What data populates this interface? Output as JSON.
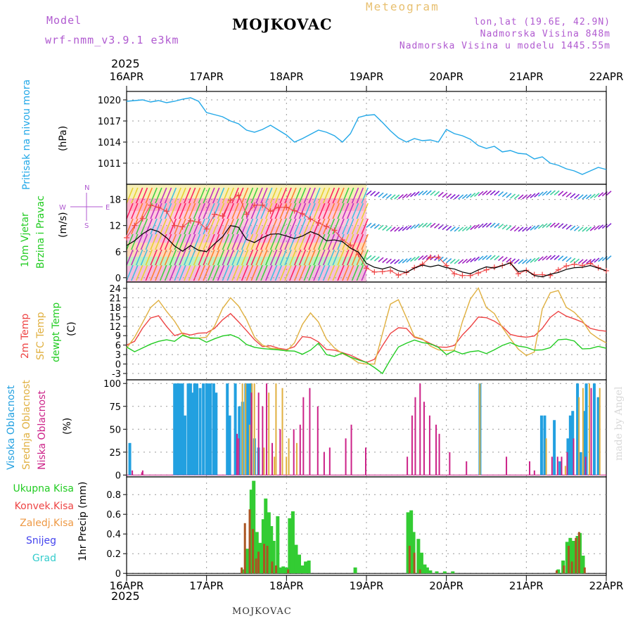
{
  "header": {
    "model_label": "Model",
    "model_name": "wrf-nmm_v3.9.1  e3km",
    "station_title": "MOJKOVAC",
    "meteogram_label": "Meteogram",
    "lonlat": "lon,lat (19.6E, 42.9N)",
    "altitude": "Nadmorska Visina 848m",
    "model_altitude": "Nadmorska Visina u modelu 1445.55m",
    "year_top": "2025",
    "year_bottom": "2025",
    "bottom_title": "MOJKOVAC",
    "credit": "made by Angel"
  },
  "time_axis": {
    "labels": [
      "16APR",
      "17APR",
      "18APR",
      "19APR",
      "20APR",
      "21APR",
      "22APR"
    ],
    "start_day": 0,
    "end_day": 6
  },
  "colors": {
    "pressure": "#22a8e8",
    "wind_speed": "#000000",
    "temp_2m": "#ee4444",
    "sfc_temp": "#e0b040",
    "dewpoint": "#22cc22",
    "cloud_high": "#22a0e0",
    "cloud_mid": "#e0b040",
    "cloud_low": "#cc2288",
    "precip_total": "#33cc33",
    "precip_conv": "#aa5522",
    "precip_ice": "#ee9944",
    "snow": "#4444ee",
    "grad": "#33cccc"
  },
  "chart_data": [
    {
      "name": "pressure",
      "type": "line",
      "ylabel": "Pritisak na nivou mora",
      "unit": "(hPa)",
      "ylim": [
        1008.0,
        1021.2
      ],
      "yticks": [
        1011,
        1014,
        1017,
        1020
      ],
      "x": [
        0,
        0.1,
        0.2,
        0.3,
        0.4,
        0.5,
        0.6,
        0.7,
        0.8,
        0.9,
        1.0,
        1.1,
        1.2,
        1.3,
        1.4,
        1.5,
        1.6,
        1.7,
        1.8,
        1.9,
        2.0,
        2.1,
        2.2,
        2.3,
        2.4,
        2.5,
        2.6,
        2.7,
        2.8,
        2.9,
        3.0,
        3.1,
        3.2,
        3.3,
        3.4,
        3.5,
        3.6,
        3.7,
        3.8,
        3.9,
        4.0,
        4.1,
        4.2,
        4.3,
        4.4,
        4.5,
        4.6,
        4.7,
        4.8,
        4.9,
        5.0,
        5.1,
        5.2,
        5.3,
        5.4,
        5.5,
        5.6,
        5.7,
        5.8,
        5.9,
        6.0
      ],
      "y": [
        1019.8,
        1019.9,
        1020.0,
        1019.7,
        1019.9,
        1019.6,
        1019.8,
        1020.1,
        1020.3,
        1019.8,
        1018.2,
        1017.9,
        1017.6,
        1017.0,
        1016.6,
        1015.7,
        1015.4,
        1015.8,
        1016.4,
        1015.7,
        1015.0,
        1014.0,
        1014.5,
        1015.1,
        1015.7,
        1015.4,
        1014.9,
        1014.0,
        1015.2,
        1017.5,
        1017.8,
        1017.9,
        1016.8,
        1015.6,
        1014.6,
        1014.0,
        1014.5,
        1014.2,
        1014.3,
        1014.0,
        1015.8,
        1015.2,
        1014.9,
        1014.4,
        1013.5,
        1013.1,
        1013.4,
        1012.6,
        1012.8,
        1012.4,
        1012.3,
        1011.6,
        1011.9,
        1011.0,
        1010.7,
        1010.2,
        1009.9,
        1009.4,
        1009.9,
        1010.4,
        1010.1
      ],
      "data_labels": {}
    },
    {
      "name": "wind",
      "type": "line",
      "ylabel": "10m Vjetar",
      "ylabel2": "Brzina i Pravac",
      "unit": "(m/s)",
      "compass": {
        "n": "N",
        "w": "W",
        "e": "E",
        "s": "S"
      },
      "ylim": [
        -1,
        21.5
      ],
      "yticks": [
        0,
        6,
        12,
        18
      ],
      "x": [
        0,
        0.1,
        0.2,
        0.3,
        0.4,
        0.5,
        0.6,
        0.7,
        0.8,
        0.9,
        1.0,
        1.1,
        1.2,
        1.3,
        1.4,
        1.5,
        1.6,
        1.7,
        1.8,
        1.9,
        2.0,
        2.1,
        2.2,
        2.3,
        2.4,
        2.5,
        2.6,
        2.7,
        2.8,
        2.9,
        3.0,
        3.1,
        3.2,
        3.3,
        3.4,
        3.5,
        3.6,
        3.7,
        3.8,
        3.9,
        4.0,
        4.1,
        4.2,
        4.3,
        4.4,
        4.5,
        4.6,
        4.7,
        4.8,
        4.9,
        5.0,
        5.1,
        5.2,
        5.3,
        5.4,
        5.5,
        5.6,
        5.7,
        5.8,
        5.9,
        6.0
      ],
      "y": [
        7.4,
        8.5,
        10.1,
        11.2,
        10.6,
        9.2,
        7.3,
        6.1,
        7.4,
        6.3,
        6.0,
        7.8,
        9.4,
        12.0,
        11.6,
        8.8,
        8.1,
        9.2,
        10.0,
        10.1,
        9.6,
        9.0,
        9.6,
        10.6,
        9.9,
        8.5,
        8.7,
        8.3,
        6.8,
        5.9,
        3.3,
        2.4,
        2.0,
        2.5,
        1.6,
        1.2,
        2.2,
        2.9,
        2.5,
        2.9,
        2.3,
        2.0,
        1.3,
        0.9,
        1.8,
        2.5,
        2.2,
        2.8,
        3.4,
        1.4,
        1.7,
        0.5,
        0.2,
        0.8,
        1.2,
        1.9,
        2.3,
        2.4,
        2.8,
        2.2,
        1.6
      ],
      "gust": [
        9.2,
        12.0,
        13.6,
        16.7,
        16.2,
        15.3,
        12.0,
        11.7,
        13.1,
        12.8,
        11.2,
        14.6,
        14.2,
        17.8,
        19.0,
        14.6,
        16.7,
        16.7,
        15.3,
        16.2,
        16.2,
        15.4,
        14.7,
        13.5,
        12.6,
        11.8,
        10.9,
        8.7,
        7.5,
        5.3,
        2.2,
        1.3,
        1.4,
        1.6,
        0.6,
        1.2,
        2.3,
        3.1,
        4.7,
        4.7,
        2.8,
        0.9,
        0.5,
        0.5,
        1.1,
        1.8,
        2.4,
        2.8,
        3.4,
        0.9,
        1.7,
        0.7,
        0.7,
        0.5,
        1.8,
        2.7,
        3.1,
        2.8,
        3.3,
        2.3,
        1.6
      ]
    },
    {
      "name": "temperature",
      "type": "line",
      "ylabels": [
        "2m Temp",
        "SFC Temp",
        "dewpt Temp"
      ],
      "unit": "(C)",
      "ylim": [
        -5,
        26
      ],
      "yticks": [
        -3,
        0,
        3,
        6,
        9,
        12,
        15,
        18,
        21,
        24
      ],
      "x": [
        0,
        0.1,
        0.2,
        0.3,
        0.4,
        0.5,
        0.6,
        0.7,
        0.8,
        0.9,
        1.0,
        1.1,
        1.2,
        1.3,
        1.4,
        1.5,
        1.6,
        1.7,
        1.8,
        1.9,
        2.0,
        2.1,
        2.2,
        2.3,
        2.4,
        2.5,
        2.6,
        2.7,
        2.8,
        2.9,
        3.0,
        3.1,
        3.2,
        3.3,
        3.4,
        3.5,
        3.6,
        3.7,
        3.8,
        3.9,
        4.0,
        4.1,
        4.2,
        4.3,
        4.4,
        4.5,
        4.6,
        4.7,
        4.8,
        4.9,
        5.0,
        5.1,
        5.2,
        5.3,
        5.4,
        5.5,
        5.6,
        5.7,
        5.8,
        5.9,
        6.0
      ],
      "series": [
        {
          "name": "2m Temp",
          "values": [
            6.0,
            7.2,
            11.4,
            14.6,
            15.3,
            11.9,
            9.0,
            9.8,
            9.2,
            9.8,
            9.9,
            11.3,
            14.0,
            16.0,
            13.4,
            10.6,
            7.7,
            5.5,
            5.8,
            5.0,
            4.6,
            5.5,
            8.7,
            8.4,
            7.0,
            4.6,
            4.4,
            3.6,
            2.8,
            1.6,
            0.5,
            1.5,
            5.8,
            9.7,
            11.5,
            11.3,
            8.5,
            7.8,
            6.5,
            5.4,
            5.3,
            5.9,
            9.2,
            11.8,
            14.9,
            14.7,
            13.6,
            11.9,
            9.4,
            8.8,
            8.5,
            8.9,
            11.3,
            14.8,
            16.7,
            15.2,
            14.3,
            13.3,
            11.3,
            10.7,
            10.4
          ]
        },
        {
          "name": "SFC Temp",
          "values": [
            5.0,
            8.5,
            13.1,
            17.9,
            20.2,
            16.7,
            13.6,
            9.5,
            8.1,
            8.2,
            8.5,
            12.0,
            17.6,
            21.0,
            18.4,
            14.1,
            8.5,
            6.0,
            5.0,
            4.8,
            4.1,
            6.7,
            12.6,
            16.2,
            13.3,
            7.9,
            5.1,
            3.3,
            2.1,
            0.4,
            0.0,
            0.0,
            9.6,
            19.0,
            20.4,
            14.7,
            8.7,
            8.0,
            5.7,
            4.5,
            4.3,
            4.4,
            13.4,
            20.6,
            24.1,
            17.9,
            16.0,
            11.6,
            8.0,
            4.7,
            2.7,
            3.8,
            17.5,
            22.6,
            23.3,
            18.0,
            16.4,
            13.8,
            9.9,
            8.1,
            6.7
          ]
        },
        {
          "name": "dewpt Temp",
          "values": [
            5.4,
            3.9,
            5.1,
            6.3,
            7.2,
            7.7,
            7.2,
            9.1,
            8.3,
            8.2,
            6.9,
            8.0,
            8.9,
            9.3,
            8.3,
            6.2,
            5.3,
            4.9,
            4.7,
            4.5,
            4.2,
            4.1,
            3.1,
            4.4,
            6.6,
            3.0,
            2.4,
            3.5,
            2.2,
            1.3,
            0.5,
            -1.1,
            -3.0,
            1.4,
            5.4,
            6.6,
            7.6,
            6.8,
            6.4,
            5.3,
            3.0,
            4.2,
            3.2,
            3.9,
            4.2,
            3.3,
            4.5,
            5.9,
            6.8,
            5.7,
            5.3,
            4.4,
            4.5,
            5.2,
            7.7,
            7.9,
            7.3,
            4.8,
            4.9,
            5.6,
            5.0
          ]
        }
      ]
    },
    {
      "name": "clouds",
      "type": "bar",
      "ylabels": [
        "Visoka Oblacnost",
        "Srednja Oblacnost",
        "Niska Oblacnost"
      ],
      "unit": "(%)",
      "ylim": [
        -2,
        104
      ],
      "yticks": [
        0,
        25,
        50,
        75,
        100
      ],
      "high": [
        [
          0.04,
          35
        ],
        [
          0.6,
          100
        ],
        [
          0.62,
          100
        ],
        [
          0.65,
          100
        ],
        [
          0.67,
          100
        ],
        [
          0.7,
          100
        ],
        [
          0.73,
          65
        ],
        [
          0.77,
          100
        ],
        [
          0.8,
          100
        ],
        [
          0.83,
          90
        ],
        [
          0.85,
          100
        ],
        [
          0.88,
          100
        ],
        [
          0.92,
          95
        ],
        [
          0.96,
          100
        ],
        [
          1.0,
          100
        ],
        [
          1.02,
          100
        ],
        [
          1.05,
          100
        ],
        [
          1.09,
          100
        ],
        [
          1.12,
          90
        ],
        [
          1.26,
          100
        ],
        [
          1.29,
          65
        ],
        [
          1.36,
          100
        ],
        [
          1.41,
          75
        ],
        [
          1.45,
          80
        ],
        [
          1.49,
          100
        ],
        [
          1.52,
          100
        ],
        [
          1.55,
          100
        ],
        [
          1.6,
          40
        ],
        [
          1.65,
          30
        ],
        [
          4.42,
          100
        ],
        [
          5.19,
          65
        ],
        [
          5.23,
          65
        ],
        [
          5.35,
          60
        ],
        [
          5.42,
          15
        ],
        [
          5.52,
          40
        ],
        [
          5.55,
          65
        ],
        [
          5.58,
          70
        ],
        [
          5.64,
          100
        ],
        [
          5.68,
          25
        ],
        [
          5.72,
          70
        ],
        [
          5.75,
          100
        ],
        [
          5.85,
          100
        ],
        [
          5.9,
          85
        ]
      ],
      "mid": [
        [
          1.44,
          100
        ],
        [
          1.48,
          100
        ],
        [
          1.53,
          55
        ],
        [
          1.56,
          100
        ],
        [
          1.59,
          100
        ],
        [
          1.71,
          30
        ],
        [
          1.77,
          90
        ],
        [
          1.84,
          20
        ],
        [
          1.86,
          100
        ],
        [
          1.94,
          95
        ],
        [
          1.99,
          20
        ],
        [
          2.02,
          40
        ],
        [
          2.12,
          35
        ],
        [
          4.41,
          100
        ],
        [
          5.24,
          40
        ],
        [
          5.48,
          10
        ],
        [
          5.65,
          85
        ],
        [
          5.7,
          95
        ],
        [
          5.78,
          100
        ],
        [
          5.91,
          95
        ]
      ],
      "low": [
        [
          0.08,
          5
        ],
        [
          0.2,
          3
        ],
        [
          0.21,
          5
        ],
        [
          1.39,
          45
        ],
        [
          1.41,
          40
        ],
        [
          1.57,
          90
        ],
        [
          1.66,
          90
        ],
        [
          1.71,
          75
        ],
        [
          1.76,
          100
        ],
        [
          1.83,
          35
        ],
        [
          1.93,
          50
        ],
        [
          2.1,
          50
        ],
        [
          2.18,
          55
        ],
        [
          2.22,
          85
        ],
        [
          2.3,
          95
        ],
        [
          2.4,
          75
        ],
        [
          2.48,
          25
        ],
        [
          2.55,
          30
        ],
        [
          2.75,
          40
        ],
        [
          2.82,
          55
        ],
        [
          3.0,
          30
        ],
        [
          3.52,
          20
        ],
        [
          3.58,
          65
        ],
        [
          3.62,
          85
        ],
        [
          3.68,
          100
        ],
        [
          3.73,
          80
        ],
        [
          3.8,
          65
        ],
        [
          3.88,
          55
        ],
        [
          3.92,
          45
        ],
        [
          4.05,
          25
        ],
        [
          4.26,
          15
        ],
        [
          4.76,
          20
        ],
        [
          5.05,
          15
        ],
        [
          5.11,
          5
        ],
        [
          5.33,
          20
        ],
        [
          5.4,
          20
        ],
        [
          5.45,
          20
        ],
        [
          5.52,
          25
        ],
        [
          5.6,
          40
        ],
        [
          5.75,
          20
        ],
        [
          5.82,
          95
        ]
      ]
    },
    {
      "name": "precip",
      "type": "bar",
      "ylabels": [
        "Ukupna Kisa",
        "Konvek.Kisa",
        "Zaledj.Kisa",
        "Snijeg",
        "Grad"
      ],
      "unit": "1hr Precip (mm)",
      "ylim": [
        -0.02,
        0.98
      ],
      "yticks": [
        0,
        0.2,
        0.4,
        0.6,
        0.8
      ],
      "total": [
        [
          1.45,
          0.04
        ],
        [
          1.51,
          0.25
        ],
        [
          1.56,
          0.85
        ],
        [
          1.59,
          0.94
        ],
        [
          1.63,
          0.42
        ],
        [
          1.67,
          0.31
        ],
        [
          1.71,
          0.55
        ],
        [
          1.74,
          0.76
        ],
        [
          1.78,
          0.62
        ],
        [
          1.81,
          0.48
        ],
        [
          1.84,
          0.33
        ],
        [
          1.89,
          0.58
        ],
        [
          1.92,
          0.06
        ],
        [
          1.96,
          0.07
        ],
        [
          2.0,
          0.06
        ],
        [
          2.04,
          0.56
        ],
        [
          2.08,
          0.63
        ],
        [
          2.12,
          0.29
        ],
        [
          2.16,
          0.19
        ],
        [
          2.2,
          0.08
        ],
        [
          2.24,
          0.12
        ],
        [
          2.28,
          0.13
        ],
        [
          2.86,
          0.06
        ],
        [
          3.52,
          0.62
        ],
        [
          3.56,
          0.64
        ],
        [
          3.59,
          0.42
        ],
        [
          3.65,
          0.35
        ],
        [
          3.69,
          0.21
        ],
        [
          3.73,
          0.09
        ],
        [
          3.76,
          0.06
        ],
        [
          3.8,
          0.03
        ],
        [
          3.88,
          0.02
        ],
        [
          3.98,
          0.02
        ],
        [
          4.08,
          0.02
        ],
        [
          5.4,
          0.04
        ],
        [
          5.46,
          0.13
        ],
        [
          5.51,
          0.32
        ],
        [
          5.55,
          0.36
        ],
        [
          5.59,
          0.33
        ],
        [
          5.64,
          0.38
        ],
        [
          5.67,
          0.41
        ],
        [
          5.71,
          0.18
        ]
      ],
      "conv": [
        [
          1.44,
          0.06
        ],
        [
          1.48,
          0.51
        ],
        [
          1.54,
          0.65
        ],
        [
          1.58,
          0.45
        ],
        [
          1.62,
          0.15
        ],
        [
          1.65,
          0.22
        ],
        [
          1.72,
          0.3
        ],
        [
          1.76,
          0.28
        ],
        [
          1.82,
          0.12
        ],
        [
          1.87,
          0.08
        ],
        [
          2.02,
          0.04
        ],
        [
          3.54,
          0.28
        ],
        [
          3.6,
          0.21
        ],
        [
          3.67,
          0.04
        ],
        [
          5.38,
          0.03
        ],
        [
          5.47,
          0.08
        ],
        [
          5.53,
          0.28
        ],
        [
          5.57,
          0.12
        ],
        [
          5.62,
          0.36
        ],
        [
          5.66,
          0.42
        ],
        [
          5.73,
          0.06
        ]
      ]
    }
  ]
}
